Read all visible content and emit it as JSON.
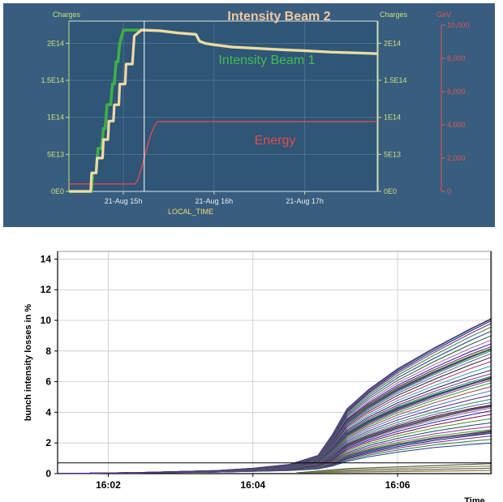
{
  "chart_data": [
    {
      "type": "line",
      "title": "",
      "xlabel": "LOCAL_TIME",
      "x_ticks": [
        "21-Aug 15h",
        "21-Aug 16h",
        "21-Aug 17h"
      ],
      "left_axis": {
        "label": "Charges",
        "ticks": [
          "0E0",
          "5E13",
          "1E14",
          "1.5E14",
          "2E14"
        ],
        "range": [
          0,
          230000000000000.0
        ]
      },
      "right_axis_inner": {
        "label": "Charges",
        "ticks": [
          "0E0",
          "5E13",
          "1E14",
          "1.5E14",
          "2E14"
        ]
      },
      "right_axis_outer": {
        "label": "GeV",
        "ticks": [
          "0",
          "2,000",
          "4,000",
          "6,000",
          "8,000",
          "10,000"
        ],
        "range": [
          0,
          10000
        ]
      },
      "x_range_hours": [
        14.4,
        17.8
      ],
      "series": [
        {
          "name": "Intensity Beam 1",
          "color": "#3fae49",
          "axis": "left",
          "x": [
            14.4,
            14.65,
            14.66,
            14.7,
            14.72,
            14.76,
            14.78,
            14.8,
            14.82,
            14.86,
            14.88,
            14.9,
            14.92,
            14.94,
            14.96,
            15.0,
            15.2,
            15.4,
            15.6,
            15.7,
            15.8,
            15.84,
            15.9,
            16.0,
            16.2,
            16.5,
            16.8,
            17.0,
            17.3,
            17.6,
            17.8
          ],
          "y": [
            0,
            0,
            25000000000000.0,
            25000000000000.0,
            58000000000000.0,
            58000000000000.0,
            85000000000000.0,
            85000000000000.0,
            117000000000000.0,
            117000000000000.0,
            145000000000000.0,
            145000000000000.0,
            175000000000000.0,
            175000000000000.0,
            200000000000000.0,
            218000000000000.0,
            218000000000000.0,
            217000000000000.0,
            214000000000000.0,
            213000000000000.0,
            212000000000000.0,
            203000000000000.0,
            200000000000000.0,
            198000000000000.0,
            195000000000000.0,
            193000000000000.0,
            191000000000000.0,
            190000000000000.0,
            188000000000000.0,
            187000000000000.0,
            186000000000000.0
          ]
        },
        {
          "name": "Intensity Beam 2",
          "color": "#f3d8a6",
          "axis": "left",
          "x": [
            14.4,
            14.64,
            14.65,
            14.7,
            14.71,
            14.77,
            14.78,
            14.83,
            14.84,
            14.89,
            14.9,
            14.95,
            14.96,
            15.02,
            15.03,
            15.1,
            15.12,
            15.2,
            15.4,
            15.6,
            15.7,
            15.8,
            15.84,
            15.9,
            16.0,
            16.2,
            16.5,
            16.8,
            17.0,
            17.3,
            17.6,
            17.8
          ],
          "y": [
            0,
            0,
            25000000000000.0,
            25000000000000.0,
            45000000000000.0,
            45000000000000.0,
            70000000000000.0,
            70000000000000.0,
            95000000000000.0,
            95000000000000.0,
            117000000000000.0,
            117000000000000.0,
            145000000000000.0,
            145000000000000.0,
            172000000000000.0,
            172000000000000.0,
            210000000000000.0,
            218000000000000.0,
            217000000000000.0,
            214000000000000.0,
            213000000000000.0,
            212000000000000.0,
            203000000000000.0,
            200000000000000.0,
            198000000000000.0,
            195000000000000.0,
            193000000000000.0,
            191000000000000.0,
            190000000000000.0,
            188000000000000.0,
            187000000000000.0,
            186000000000000.0
          ]
        },
        {
          "name": "Energy",
          "color": "#e34b4b",
          "axis": "right_outer",
          "x": [
            14.4,
            15.13,
            15.16,
            15.2,
            15.25,
            15.3,
            15.35,
            15.38,
            17.8
          ],
          "y": [
            450,
            450,
            700,
            1400,
            2400,
            3400,
            4000,
            4200,
            4200
          ]
        }
      ],
      "marker_line_x": 15.23
    },
    {
      "type": "line",
      "title": "",
      "xlabel": "Time",
      "ylabel": "bunch intensity losses in %",
      "x_ticks": [
        "16:02",
        "16:04",
        "16:06"
      ],
      "y_ticks": [
        "0",
        "2",
        "4",
        "6",
        "8",
        "10",
        "12",
        "14"
      ],
      "ylim": [
        0,
        14.5
      ],
      "x_range_minutes": [
        1.3,
        7.3
      ],
      "threshold": 0.7,
      "cursor_x": 7.3,
      "bundle": {
        "x": [
          1.3,
          2.5,
          3.5,
          4.0,
          4.5,
          4.9,
          5.1,
          5.3,
          5.6,
          6.0,
          6.5,
          7.0,
          7.3
        ],
        "envelope_min": [
          0,
          0.05,
          0.1,
          0.15,
          0.2,
          0.3,
          0.5,
          0.8,
          1.1,
          1.4,
          1.7,
          1.9,
          2.0
        ],
        "envelope_max": [
          0,
          0.08,
          0.2,
          0.35,
          0.6,
          1.2,
          2.6,
          4.3,
          5.6,
          7.0,
          8.4,
          9.7,
          10.4
        ],
        "line_count": 70,
        "flat_lines_count": 4,
        "flat_lines_end": [
          0.2,
          0.35,
          0.5,
          0.65
        ]
      }
    }
  ],
  "colors": {
    "top_background": "#385d7f",
    "top_plot_background": "#2f5577",
    "axis_green": "#c8e07a",
    "axis_red": "#e05555",
    "bottom_grid": "#c8c8c8",
    "bottom_axis": "#000000"
  }
}
